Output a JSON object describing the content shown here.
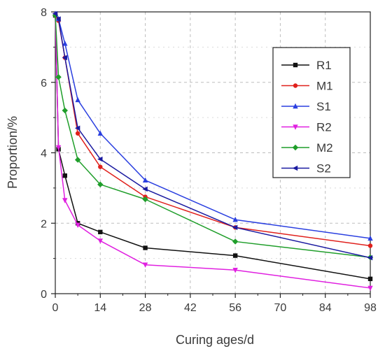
{
  "chart_data": {
    "type": "line",
    "xlabel": "Curing ages/d",
    "ylabel": "Proportion/%",
    "xlim": [
      0,
      98
    ],
    "ylim": [
      0,
      8
    ],
    "xticks": [
      0,
      14,
      28,
      42,
      56,
      70,
      84,
      98
    ],
    "yticks": [
      0,
      2,
      4,
      6,
      8
    ],
    "grid": true,
    "legend_position": "top-right",
    "series": [
      {
        "name": "R1",
        "color": "#111111",
        "marker": "square",
        "x": [
          0,
          1,
          3,
          7,
          14,
          28,
          56,
          98
        ],
        "y": [
          7.9,
          4.1,
          3.35,
          2.0,
          1.75,
          1.3,
          1.08,
          0.42
        ]
      },
      {
        "name": "M1",
        "color": "#e0201c",
        "marker": "circle",
        "x": [
          0,
          1,
          3,
          7,
          14,
          28,
          56,
          98
        ],
        "y": [
          7.9,
          7.75,
          6.7,
          4.55,
          3.6,
          2.75,
          1.88,
          1.36
        ]
      },
      {
        "name": "S1",
        "color": "#2a3fe0",
        "marker": "triangle-up",
        "x": [
          0,
          1,
          3,
          7,
          14,
          28,
          56,
          98
        ],
        "y": [
          7.95,
          7.8,
          7.1,
          5.5,
          4.55,
          3.22,
          2.1,
          1.57
        ]
      },
      {
        "name": "R2",
        "color": "#e020e0",
        "marker": "triangle-down",
        "x": [
          0,
          1,
          3,
          7,
          14,
          28,
          56,
          98
        ],
        "y": [
          7.9,
          4.15,
          2.65,
          1.95,
          1.5,
          0.82,
          0.67,
          0.16
        ]
      },
      {
        "name": "M2",
        "color": "#1f9e2a",
        "marker": "diamond",
        "x": [
          0,
          1,
          3,
          7,
          14,
          28,
          56,
          98
        ],
        "y": [
          7.9,
          6.15,
          5.2,
          3.8,
          3.1,
          2.68,
          1.48,
          1.03
        ]
      },
      {
        "name": "S2",
        "color": "#1a1aa0",
        "marker": "triangle-left",
        "x": [
          0,
          1,
          3,
          7,
          14,
          28,
          56,
          98
        ],
        "y": [
          7.95,
          7.8,
          6.7,
          4.7,
          3.82,
          2.97,
          1.88,
          1.02
        ]
      }
    ]
  }
}
